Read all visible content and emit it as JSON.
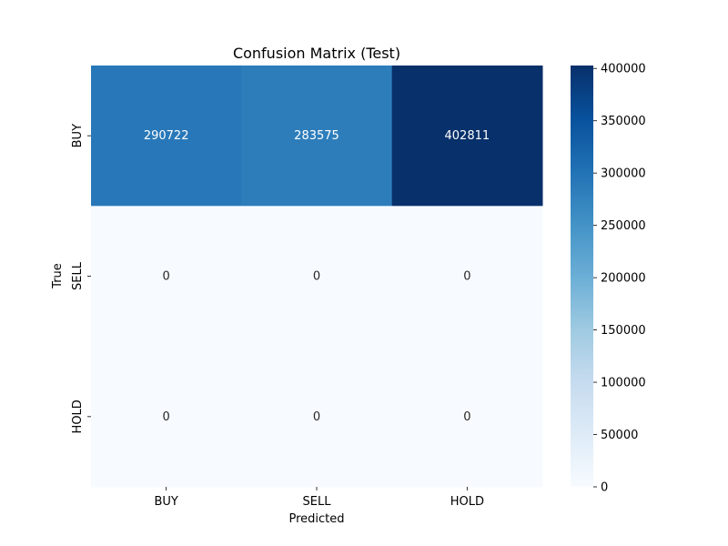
{
  "chart_data": {
    "type": "heatmap",
    "title": "Confusion Matrix (Test)",
    "xlabel": "Predicted",
    "ylabel": "True",
    "x_categories": [
      "BUY",
      "SELL",
      "HOLD"
    ],
    "y_categories": [
      "BUY",
      "SELL",
      "HOLD"
    ],
    "values": [
      [
        290722,
        283575,
        402811
      ],
      [
        0,
        0,
        0
      ],
      [
        0,
        0,
        0
      ]
    ],
    "colorbar": {
      "min": 0,
      "max": 402811,
      "ticks": [
        0,
        50000,
        100000,
        150000,
        200000,
        250000,
        300000,
        350000,
        400000
      ]
    },
    "colormap": "Blues",
    "colors": {
      "low": "#f7fbff",
      "high": "#08306b"
    },
    "grid": false,
    "legend": "colorbar-right"
  }
}
